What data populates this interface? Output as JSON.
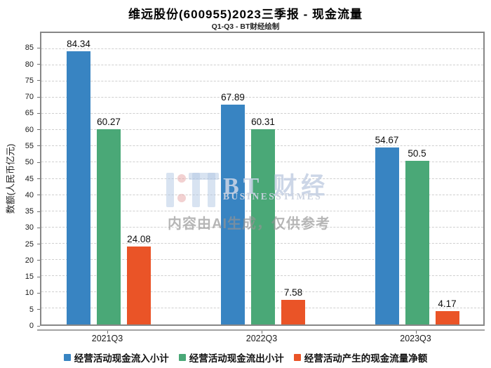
{
  "header": {
    "title": "维远股份(600955)2023三季报 - 现金流量",
    "subtitle": "Q1-Q3 - BT财经绘制"
  },
  "chart_data": {
    "type": "bar",
    "title": "维远股份(600955)2023三季报 - 现金流量",
    "subtitle": "Q1-Q3 - BT财经绘制",
    "categories": [
      "2021Q3",
      "2022Q3",
      "2023Q3"
    ],
    "series": [
      {
        "name": "经营活动现金流入小计",
        "color": "#3884c2",
        "values": [
          84.34,
          67.89,
          54.67
        ]
      },
      {
        "name": "经营活动现金流出小计",
        "color": "#4aa877",
        "values": [
          60.27,
          60.31,
          50.5
        ]
      },
      {
        "name": "经营活动产生的现金流量净额",
        "color": "#ea5427",
        "values": [
          24.08,
          7.58,
          4.17
        ]
      }
    ],
    "xlabel": "",
    "ylabel": "数额(人民币亿元)",
    "ylim": [
      0,
      90
    ],
    "yticks": {
      "min": 0,
      "max": 85,
      "step": 5
    },
    "grid": true,
    "gridline_style": "dashed",
    "legend_position": "bottom",
    "bar_value_labels": true
  },
  "watermark": {
    "brand": "BT 财经",
    "brand_sub": "BUSINESSTIMES",
    "disclaimer": "内容由AI生成，仅供参考"
  },
  "colors": {
    "inflow_blue": "#3884c2",
    "outflow_green": "#4aa877",
    "net_orange": "#ea5427",
    "gridline": "#cfcfcf",
    "frame": "#878787",
    "axis_line": "#a3a3a3",
    "text": "#1a1a1a"
  }
}
